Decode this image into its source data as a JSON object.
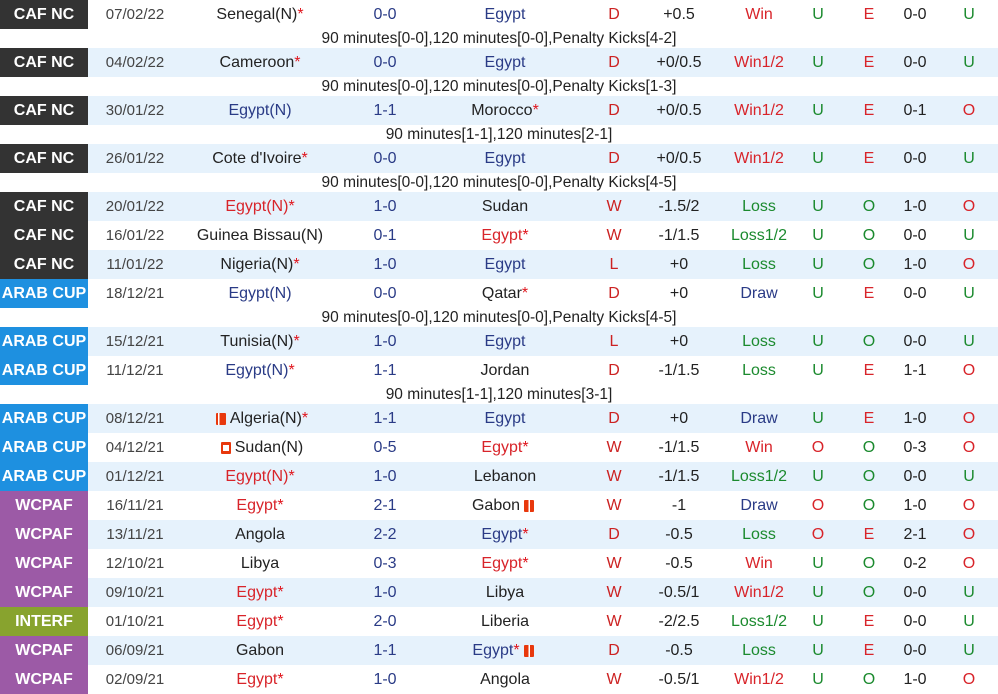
{
  "colors": {
    "caf": "#333333",
    "arab": "#1e90e0",
    "wcpaf": "#9c5aa6",
    "interf": "#88a32e",
    "win": "#d8242a",
    "loss": "#1b8a2e",
    "stripe": "#e6f2fc"
  },
  "rows": [
    {
      "kind": "match",
      "league": "CAF NC",
      "lc": "caf",
      "date": "07/02/22",
      "home": "Senegal(N)",
      "hstar": "*",
      "hcol": "team",
      "score": "0-0",
      "away": "Egypt",
      "astar": "",
      "acol": "blue",
      "res": "D",
      "hcp": "+0.5",
      "hres": "Win",
      "hresc": "red",
      "ou": "U",
      "ouc": "green",
      "oe": "E",
      "oec": "red",
      "ht": "0-0",
      "hou": "U",
      "houc": "green",
      "bg": "odd",
      "sep": false
    },
    {
      "kind": "note",
      "text": "90 minutes[0-0],120 minutes[0-0],Penalty Kicks[4-2]"
    },
    {
      "kind": "match",
      "league": "CAF NC",
      "lc": "caf",
      "date": "04/02/22",
      "home": "Cameroon",
      "hstar": "*",
      "hcol": "team",
      "score": "0-0",
      "away": "Egypt",
      "astar": "",
      "acol": "blue",
      "res": "D",
      "hcp": "+0/0.5",
      "hres": "Win1/2",
      "hresc": "red",
      "ou": "U",
      "ouc": "green",
      "oe": "E",
      "oec": "red",
      "ht": "0-0",
      "hou": "U",
      "houc": "green",
      "bg": "even",
      "sep": false
    },
    {
      "kind": "note",
      "text": "90 minutes[0-0],120 minutes[0-0],Penalty Kicks[1-3]"
    },
    {
      "kind": "match",
      "league": "CAF NC",
      "lc": "caf",
      "date": "30/01/22",
      "home": "Egypt(N)",
      "hstar": "",
      "hcol": "blue",
      "score": "1-1",
      "away": "Morocco",
      "astar": "*",
      "acol": "team",
      "res": "D",
      "hcp": "+0/0.5",
      "hres": "Win1/2",
      "hresc": "red",
      "ou": "U",
      "ouc": "green",
      "oe": "E",
      "oec": "red",
      "ht": "0-1",
      "hou": "O",
      "houc": "red",
      "bg": "even",
      "sep": false
    },
    {
      "kind": "note",
      "text": "90 minutes[1-1],120 minutes[2-1]"
    },
    {
      "kind": "match",
      "league": "CAF NC",
      "lc": "caf",
      "date": "26/01/22",
      "home": "Cote d'Ivoire",
      "hstar": "*",
      "hcol": "team",
      "score": "0-0",
      "away": "Egypt",
      "astar": "",
      "acol": "blue",
      "res": "D",
      "hcp": "+0/0.5",
      "hres": "Win1/2",
      "hresc": "red",
      "ou": "U",
      "ouc": "green",
      "oe": "E",
      "oec": "red",
      "ht": "0-0",
      "hou": "U",
      "houc": "green",
      "bg": "even",
      "sep": false
    },
    {
      "kind": "note",
      "text": "90 minutes[0-0],120 minutes[0-0],Penalty Kicks[4-5]"
    },
    {
      "kind": "match",
      "league": "CAF NC",
      "lc": "caf",
      "date": "20/01/22",
      "home": "Egypt(N)",
      "hstar": "*",
      "hcol": "red",
      "score": "1-0",
      "away": "Sudan",
      "astar": "",
      "acol": "team",
      "res": "W",
      "hcp": "-1.5/2",
      "hres": "Loss",
      "hresc": "green",
      "ou": "U",
      "ouc": "green",
      "oe": "O",
      "oec": "green",
      "ht": "1-0",
      "hou": "O",
      "houc": "red",
      "bg": "even",
      "sep": false
    },
    {
      "kind": "match",
      "league": "CAF NC",
      "lc": "caf",
      "date": "16/01/22",
      "home": "Guinea Bissau(N)",
      "hstar": "",
      "hcol": "team",
      "score": "0-1",
      "away": "Egypt",
      "astar": "*",
      "acol": "red",
      "res": "W",
      "hcp": "-1/1.5",
      "hres": "Loss1/2",
      "hresc": "green",
      "ou": "U",
      "ouc": "green",
      "oe": "O",
      "oec": "green",
      "ht": "0-0",
      "hou": "U",
      "houc": "green",
      "bg": "odd",
      "sep": false
    },
    {
      "kind": "match",
      "league": "CAF NC",
      "lc": "caf",
      "date": "11/01/22",
      "home": "Nigeria(N)",
      "hstar": "*",
      "hcol": "team",
      "score": "1-0",
      "away": "Egypt",
      "astar": "",
      "acol": "blue",
      "res": "L",
      "hcp": "+0",
      "hres": "Loss",
      "hresc": "green",
      "ou": "U",
      "ouc": "green",
      "oe": "O",
      "oec": "green",
      "ht": "1-0",
      "hou": "O",
      "houc": "red",
      "bg": "even",
      "sep": false
    },
    {
      "kind": "match",
      "league": "ARAB CUP",
      "lc": "arab",
      "date": "18/12/21",
      "home": "Egypt(N)",
      "hstar": "",
      "hcol": "blue",
      "score": "0-0",
      "away": "Qatar",
      "astar": "*",
      "acol": "team",
      "res": "D",
      "hcp": "+0",
      "hres": "Draw",
      "hresc": "blue",
      "ou": "U",
      "ouc": "green",
      "oe": "E",
      "oec": "red",
      "ht": "0-0",
      "hou": "U",
      "houc": "green",
      "bg": "odd",
      "sep": false
    },
    {
      "kind": "note",
      "text": "90 minutes[0-0],120 minutes[0-0],Penalty Kicks[4-5]"
    },
    {
      "kind": "match",
      "league": "ARAB CUP",
      "lc": "arab",
      "date": "15/12/21",
      "home": "Tunisia(N)",
      "hstar": "*",
      "hcol": "team",
      "score": "1-0",
      "away": "Egypt",
      "astar": "",
      "acol": "blue",
      "res": "L",
      "hcp": "+0",
      "hres": "Loss",
      "hresc": "green",
      "ou": "U",
      "ouc": "green",
      "oe": "O",
      "oec": "green",
      "ht": "0-0",
      "hou": "U",
      "houc": "green",
      "bg": "even",
      "sep": false
    },
    {
      "kind": "match",
      "league": "ARAB CUP",
      "lc": "arab",
      "date": "11/12/21",
      "home": "Egypt(N)",
      "hstar": "*",
      "hcol": "blue",
      "score": "1-1",
      "away": "Jordan",
      "astar": "",
      "acol": "team",
      "res": "D",
      "hcp": "-1/1.5",
      "hres": "Loss",
      "hresc": "green",
      "ou": "U",
      "ouc": "green",
      "oe": "E",
      "oec": "red",
      "ht": "1-1",
      "hou": "O",
      "houc": "red",
      "bg": "odd",
      "sep": false
    },
    {
      "kind": "note",
      "text": "90 minutes[1-1],120 minutes[3-1]"
    },
    {
      "kind": "match",
      "league": "ARAB CUP",
      "lc": "arab",
      "date": "08/12/21",
      "home": "Algeria(N)",
      "hstar": "*",
      "hcol": "team",
      "hflag": "dz",
      "score": "1-1",
      "away": "Egypt",
      "astar": "",
      "acol": "blue",
      "res": "D",
      "hcp": "+0",
      "hres": "Draw",
      "hresc": "blue",
      "ou": "U",
      "ouc": "green",
      "oe": "E",
      "oec": "red",
      "ht": "1-0",
      "hou": "O",
      "houc": "red",
      "bg": "even",
      "sep": false
    },
    {
      "kind": "match",
      "league": "ARAB CUP",
      "lc": "arab",
      "date": "04/12/21",
      "home": "Sudan(N)",
      "hstar": "",
      "hcol": "team",
      "hflag": "sd",
      "score": "0-5",
      "away": "Egypt",
      "astar": "*",
      "acol": "red",
      "res": "W",
      "hcp": "-1/1.5",
      "hres": "Win",
      "hresc": "red",
      "ou": "O",
      "ouc": "red",
      "oe": "O",
      "oec": "green",
      "ht": "0-3",
      "hou": "O",
      "houc": "red",
      "bg": "odd",
      "sep": false
    },
    {
      "kind": "match",
      "league": "ARAB CUP",
      "lc": "arab",
      "date": "01/12/21",
      "home": "Egypt(N)",
      "hstar": "*",
      "hcol": "red",
      "score": "1-0",
      "away": "Lebanon",
      "astar": "",
      "acol": "team",
      "res": "W",
      "hcp": "-1/1.5",
      "hres": "Loss1/2",
      "hresc": "green",
      "ou": "U",
      "ouc": "green",
      "oe": "O",
      "oec": "green",
      "ht": "0-0",
      "hou": "U",
      "houc": "green",
      "bg": "even",
      "sep": false
    },
    {
      "kind": "match",
      "league": "WCPAF",
      "lc": "wcpaf",
      "date": "16/11/21",
      "home": "Egypt",
      "hstar": "*",
      "hcol": "red",
      "score": "2-1",
      "away": "Gabon",
      "astar": "",
      "acol": "team",
      "aflag": "ga",
      "res": "W",
      "hcp": "-1",
      "hres": "Draw",
      "hresc": "blue",
      "ou": "O",
      "ouc": "red",
      "oe": "O",
      "oec": "green",
      "ht": "1-0",
      "hou": "O",
      "houc": "red",
      "bg": "odd",
      "sep": false
    },
    {
      "kind": "match",
      "league": "WCPAF",
      "lc": "wcpaf",
      "date": "13/11/21",
      "home": "Angola",
      "hstar": "",
      "hcol": "team",
      "score": "2-2",
      "away": "Egypt",
      "astar": "*",
      "acol": "blue",
      "res": "D",
      "hcp": "-0.5",
      "hres": "Loss",
      "hresc": "green",
      "ou": "O",
      "ouc": "red",
      "oe": "E",
      "oec": "red",
      "ht": "2-1",
      "hou": "O",
      "houc": "red",
      "bg": "even",
      "sep": false
    },
    {
      "kind": "match",
      "league": "WCPAF",
      "lc": "wcpaf",
      "date": "12/10/21",
      "home": "Libya",
      "hstar": "",
      "hcol": "team",
      "score": "0-3",
      "away": "Egypt",
      "astar": "*",
      "acol": "red",
      "res": "W",
      "hcp": "-0.5",
      "hres": "Win",
      "hresc": "red",
      "ou": "U",
      "ouc": "green",
      "oe": "O",
      "oec": "green",
      "ht": "0-2",
      "hou": "O",
      "houc": "red",
      "bg": "odd",
      "sep": false
    },
    {
      "kind": "match",
      "league": "WCPAF",
      "lc": "wcpaf",
      "date": "09/10/21",
      "home": "Egypt",
      "hstar": "*",
      "hcol": "red",
      "score": "1-0",
      "away": "Libya",
      "astar": "",
      "acol": "team",
      "res": "W",
      "hcp": "-0.5/1",
      "hres": "Win1/2",
      "hresc": "red",
      "ou": "U",
      "ouc": "green",
      "oe": "O",
      "oec": "green",
      "ht": "0-0",
      "hou": "U",
      "houc": "green",
      "bg": "even",
      "sep": false
    },
    {
      "kind": "match",
      "league": "INTERF",
      "lc": "interf",
      "date": "01/10/21",
      "home": "Egypt",
      "hstar": "*",
      "hcol": "red",
      "score": "2-0",
      "away": "Liberia",
      "astar": "",
      "acol": "team",
      "res": "W",
      "hcp": "-2/2.5",
      "hres": "Loss1/2",
      "hresc": "green",
      "ou": "U",
      "ouc": "green",
      "oe": "E",
      "oec": "red",
      "ht": "0-0",
      "hou": "U",
      "houc": "green",
      "bg": "odd",
      "sep": false
    },
    {
      "kind": "match",
      "league": "WCPAF",
      "lc": "wcpaf",
      "date": "06/09/21",
      "home": "Gabon",
      "hstar": "",
      "hcol": "team",
      "score": "1-1",
      "away": "Egypt",
      "astar": "*",
      "acol": "blue",
      "aflag": "ga",
      "res": "D",
      "hcp": "-0.5",
      "hres": "Loss",
      "hresc": "green",
      "ou": "U",
      "ouc": "green",
      "oe": "E",
      "oec": "red",
      "ht": "0-0",
      "hou": "U",
      "houc": "green",
      "bg": "even",
      "sep": false
    },
    {
      "kind": "match",
      "league": "WCPAF",
      "lc": "wcpaf",
      "date": "02/09/21",
      "home": "Egypt",
      "hstar": "*",
      "hcol": "red",
      "score": "1-0",
      "away": "Angola",
      "astar": "",
      "acol": "team",
      "res": "W",
      "hcp": "-0.5/1",
      "hres": "Win1/2",
      "hresc": "red",
      "ou": "U",
      "ouc": "green",
      "oe": "O",
      "oec": "green",
      "ht": "1-0",
      "hou": "O",
      "houc": "red",
      "bg": "odd",
      "sep": false
    }
  ]
}
